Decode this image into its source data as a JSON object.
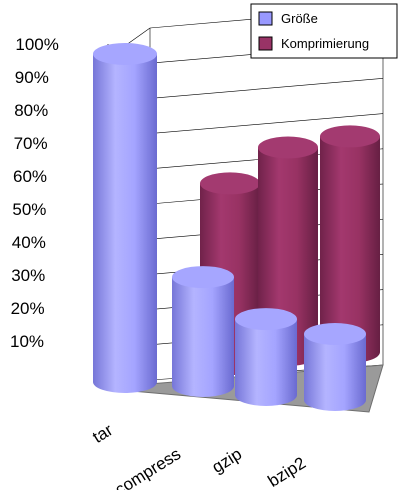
{
  "chart_data": {
    "type": "bar",
    "subtype": "3d-cylinder",
    "title": "",
    "xlabel": "",
    "ylabel": "",
    "ylim": [
      0,
      100
    ],
    "categories": [
      "tar",
      "compress",
      "gzip",
      "bzip2"
    ],
    "yticks": [
      "10%",
      "20%",
      "30%",
      "40%",
      "50%",
      "60%",
      "70%",
      "80%",
      "90%",
      "100%"
    ],
    "series": [
      {
        "name": "Größe",
        "color": "#9999ff",
        "values": [
          100,
          33,
          23,
          20
        ]
      },
      {
        "name": "Komprimierung",
        "color": "#993366",
        "values": [
          0,
          67,
          77,
          80
        ]
      }
    ],
    "legend": {
      "position": "top-right"
    },
    "grid": true
  }
}
